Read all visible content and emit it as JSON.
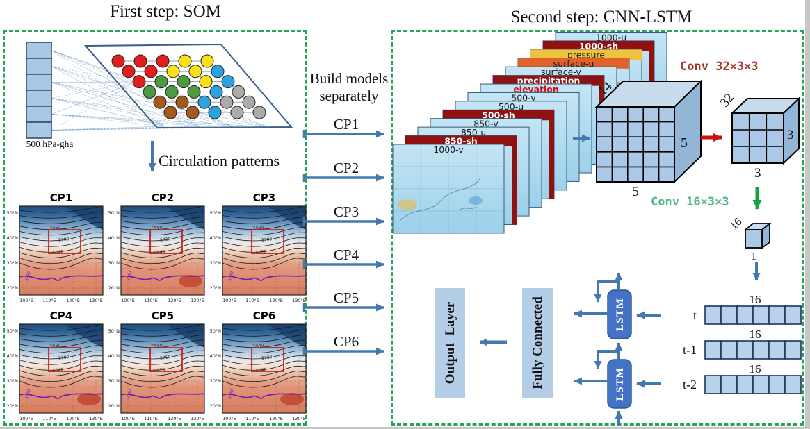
{
  "left_panel": {
    "title": "First step: SOM",
    "input_label": "500 hPa-gha",
    "arrow_label": "Circulation patterns",
    "som_palette": {
      "red": "#e21d1d",
      "yellow": "#f9e11a",
      "blue": "#2ca3e0",
      "green": "#4e9a40",
      "gray": "#ababab",
      "brown": "#a55a1c"
    },
    "som_grid_rows": [
      [
        "red",
        "red",
        "red",
        "yellow",
        "yellow"
      ],
      [
        "red",
        "red",
        "yellow",
        "yellow",
        "blue"
      ],
      [
        "red",
        "green",
        "green",
        "yellow",
        "blue"
      ],
      [
        "green",
        "green",
        "green",
        "blue",
        "gray"
      ],
      [
        "brown",
        "brown",
        "blue",
        "gray",
        "gray"
      ],
      [
        "brown",
        "brown",
        "blue",
        "gray",
        "gray"
      ]
    ],
    "map_ticks_x": [
      "100°E",
      "110°E",
      "120°E",
      "130°E"
    ],
    "map_ticks_y": [
      "50°N",
      "40°N",
      "30°N",
      "20°N"
    ],
    "maps": [
      {
        "name": "CP1",
        "contour_labels": [
          "5660",
          "5700",
          "5840"
        ],
        "purple_label": "5880"
      },
      {
        "name": "CP2",
        "contour_labels": [
          "5560",
          "5720",
          "5840"
        ],
        "purple_label": "5880"
      },
      {
        "name": "CP3",
        "contour_labels": [
          "5620",
          "5700",
          "5780"
        ],
        "purple_label": "5880"
      },
      {
        "name": "CP4",
        "contour_labels": [
          "5580",
          "5700",
          "5840"
        ],
        "purple_label": "5880"
      },
      {
        "name": "CP5",
        "contour_labels": [
          "5580",
          "5760",
          "5820"
        ],
        "purple_label": "5880"
      },
      {
        "name": "CP6",
        "contour_labels": [
          "5640",
          "5720",
          "5840"
        ],
        "purple_label": "5880"
      }
    ]
  },
  "middle": {
    "note_line1": "Build models",
    "note_line2": "separately",
    "arrows": [
      "CP1",
      "CP2",
      "CP3",
      "CP4",
      "CP5",
      "CP6"
    ]
  },
  "right_panel": {
    "title": "Second step: CNN-LSTM",
    "input_layers": [
      "1000-u",
      "1000-sh",
      "pressure",
      "surface-u",
      "surface-v",
      "precipitation",
      "elevation",
      "500-v",
      "500-u",
      "500-sh",
      "850-v",
      "850-u",
      "850-sh",
      "1000-v"
    ],
    "conv1_label": "Conv 32×3×3",
    "conv2_label": "Conv 16×3×3",
    "cube1": {
      "depth": "14",
      "height": "5",
      "width": "5"
    },
    "cube2": {
      "depth": "32",
      "height": "3",
      "width": "3"
    },
    "cube3": {
      "depth": "16",
      "width": "1"
    },
    "vectors": [
      {
        "time": "t",
        "size": "16"
      },
      {
        "time": "t-1",
        "size": "16"
      },
      {
        "time": "t-2",
        "size": "16"
      }
    ],
    "lstm_label": "LSTM",
    "fc_label": "Fully Connected",
    "output_label": "Output Layer"
  },
  "colors": {
    "arrow_blue": "#4478b0",
    "border_green": "#27a35d",
    "conv1_text": "#9c3a2a",
    "conv2_text": "#53b884",
    "conv_arrow_red": "#c41414",
    "conv_arrow_green": "#16a04a",
    "lstm_fill": "#4472c4",
    "panel_light_blue": "#b5cee7",
    "layer_dark_red": "#8e1212"
  }
}
